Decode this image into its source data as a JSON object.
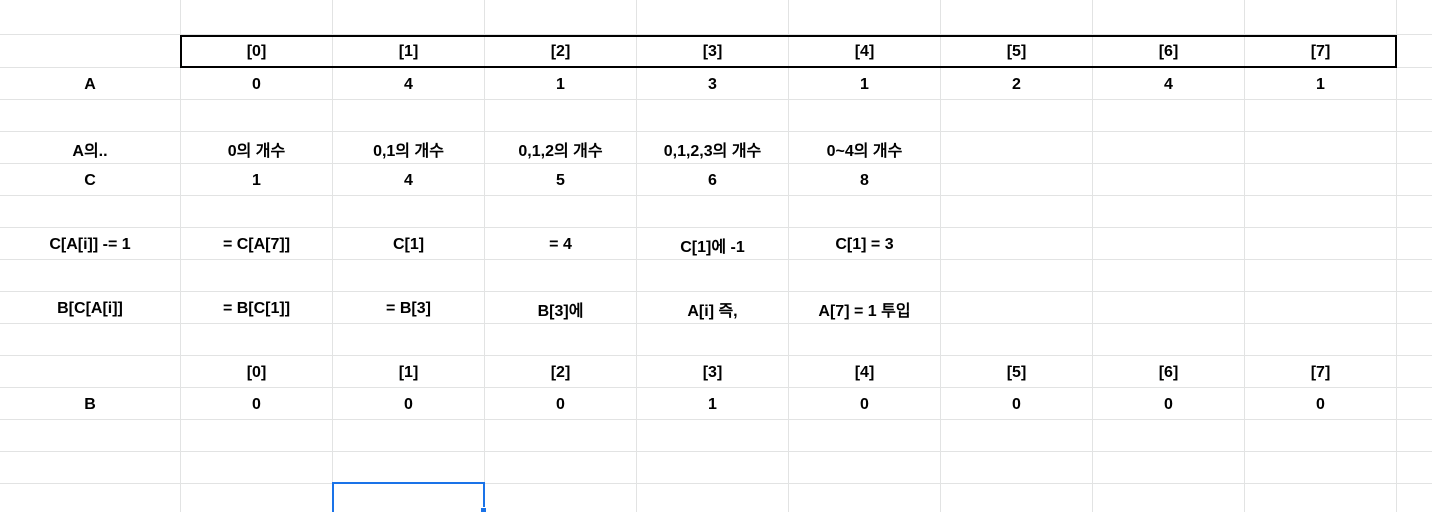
{
  "rows": [
    [
      "",
      "",
      "",
      "",
      "",
      "",
      "",
      "",
      "",
      ""
    ],
    [
      "",
      "[0]",
      "[1]",
      "[2]",
      "[3]",
      "[4]",
      "[5]",
      "[6]",
      "[7]",
      ""
    ],
    [
      "A",
      "0",
      "4",
      "1",
      "3",
      "1",
      "2",
      "4",
      "1",
      ""
    ],
    [
      "",
      "",
      "",
      "",
      "",
      "",
      "",
      "",
      "",
      ""
    ],
    [
      "A의..",
      "0의 개수",
      "0,1의 개수",
      "0,1,2의 개수",
      "0,1,2,3의 개수",
      "0~4의 개수",
      "",
      "",
      "",
      ""
    ],
    [
      "C",
      "1",
      "4",
      "5",
      "6",
      "8",
      "",
      "",
      "",
      ""
    ],
    [
      "",
      "",
      "",
      "",
      "",
      "",
      "",
      "",
      "",
      ""
    ],
    [
      "C[A[i]] -= 1",
      "= C[A[7]]",
      "C[1]",
      "= 4",
      "C[1]에 -1",
      "C[1] = 3",
      "",
      "",
      "",
      ""
    ],
    [
      "",
      "",
      "",
      "",
      "",
      "",
      "",
      "",
      "",
      ""
    ],
    [
      "B[C[A[i]]",
      "= B[C[1]]",
      "= B[3]",
      "B[3]에",
      "A[i] 즉,",
      "A[7] = 1 투입",
      "",
      "",
      "",
      ""
    ],
    [
      "",
      "",
      "",
      "",
      "",
      "",
      "",
      "",
      "",
      ""
    ],
    [
      "",
      "[0]",
      "[1]",
      "[2]",
      "[3]",
      "[4]",
      "[5]",
      "[6]",
      "[7]",
      ""
    ],
    [
      "B",
      "0",
      "0",
      "0",
      "1",
      "0",
      "0",
      "0",
      "0",
      ""
    ],
    [
      "",
      "",
      "",
      "",
      "",
      "",
      "",
      "",
      "",
      ""
    ],
    [
      "",
      "",
      "",
      "",
      "",
      "",
      "",
      "",
      "",
      ""
    ],
    [
      "",
      "",
      "",
      "",
      "",
      "",
      "",
      "",
      "",
      ""
    ]
  ],
  "selection": {
    "row": 15,
    "col": 2,
    "color": "#1a73e8"
  },
  "colors": {
    "gridline": "#e2e3e3",
    "header_border": "#000000",
    "text": "#000000"
  }
}
